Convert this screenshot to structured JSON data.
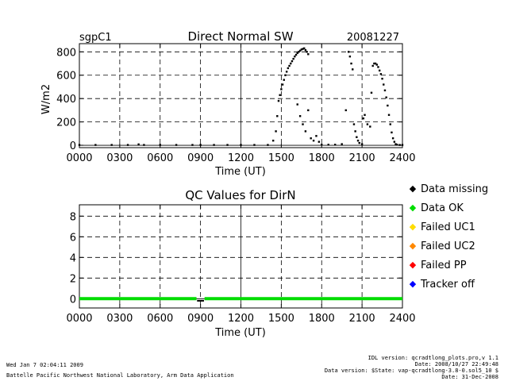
{
  "header": {
    "site": "sgpC1",
    "title": "Direct Normal SW",
    "date": "20081227"
  },
  "chart_data": [
    {
      "type": "scatter",
      "title": "Direct Normal SW",
      "ylabel": "W/m2",
      "xlabel": "Time (UT)",
      "xlim": [
        0,
        2400
      ],
      "ylim": [
        -20,
        870
      ],
      "x_ticks": [
        0,
        300,
        600,
        900,
        1200,
        1500,
        1800,
        2100,
        2400
      ],
      "x_tick_labels": [
        "0000",
        "0300",
        "0600",
        "0900",
        "1200",
        "1500",
        "1800",
        "2100",
        "2400"
      ],
      "y_ticks": [
        0,
        200,
        400,
        600,
        800
      ],
      "y_tick_labels": [
        "0",
        "200",
        "400",
        "600",
        "800"
      ],
      "grid": "dashed",
      "series": [
        {
          "color": "#000000",
          "x": [
            0,
            120,
            240,
            360,
            440,
            480,
            600,
            720,
            840,
            900,
            1000,
            1100,
            1200,
            1300,
            1400,
            1440,
            1460,
            1470,
            1480,
            1490,
            1500,
            1510,
            1520,
            1530,
            1540,
            1550,
            1560,
            1570,
            1580,
            1590,
            1600,
            1610,
            1620,
            1630,
            1640,
            1650,
            1660,
            1670,
            1680,
            1690,
            1700,
            1620,
            1640,
            1660,
            1680,
            1700,
            1720,
            1740,
            1760,
            1780,
            1800,
            1850,
            1900,
            1950,
            1980,
            2000,
            2010,
            2020,
            2030,
            2040,
            2050,
            2060,
            2070,
            2080,
            2100,
            2110,
            2120,
            2140,
            2160,
            2170,
            2180,
            2190,
            2200,
            2210,
            2220,
            2230,
            2240,
            2250,
            2260,
            2270,
            2280,
            2290,
            2300,
            2310,
            2320,
            2330,
            2340,
            2350,
            2360,
            2380,
            2400
          ],
          "y": [
            3,
            3,
            3,
            3,
            8,
            3,
            3,
            3,
            3,
            3,
            3,
            3,
            3,
            3,
            3,
            40,
            120,
            250,
            380,
            430,
            480,
            520,
            560,
            600,
            630,
            660,
            680,
            700,
            720,
            740,
            760,
            775,
            790,
            800,
            810,
            820,
            825,
            830,
            815,
            800,
            780,
            350,
            250,
            180,
            120,
            300,
            60,
            40,
            80,
            30,
            5,
            5,
            5,
            10,
            300,
            800,
            760,
            700,
            650,
            180,
            120,
            70,
            40,
            20,
            10,
            230,
            260,
            180,
            160,
            450,
            680,
            700,
            700,
            690,
            670,
            640,
            610,
            570,
            520,
            470,
            410,
            340,
            260,
            180,
            110,
            60,
            30,
            10,
            5,
            3,
            3
          ]
        }
      ]
    },
    {
      "type": "scatter",
      "title": "QC Values for DirN",
      "xlabel": "Time (UT)",
      "xlim": [
        0,
        2400
      ],
      "ylim": [
        -0.9,
        9.1
      ],
      "x_ticks": [
        0,
        300,
        600,
        900,
        1200,
        1500,
        1800,
        2100,
        2400
      ],
      "x_tick_labels": [
        "0000",
        "0300",
        "0600",
        "0900",
        "1200",
        "1500",
        "1800",
        "2100",
        "2400"
      ],
      "y_ticks": [
        0,
        2,
        4,
        6,
        8
      ],
      "y_tick_labels": [
        "0",
        "2",
        "4",
        "6",
        "8"
      ],
      "grid": "dashed",
      "qc_segments": [
        {
          "x_start": 0,
          "x_end": 870,
          "y": 0,
          "color": "#00dd00"
        },
        {
          "x_start": 930,
          "x_end": 2400,
          "y": 0,
          "color": "#00dd00"
        }
      ],
      "missing_points": {
        "x": [
          880,
          890,
          900,
          910,
          920
        ],
        "y": [
          -0.2,
          -0.2,
          -0.2,
          -0.2,
          -0.2
        ]
      },
      "legend": {
        "placement": "right",
        "entries": [
          {
            "label": "Data missing",
            "color": "#000000"
          },
          {
            "label": "Data OK",
            "color": "#00dd00"
          },
          {
            "label": "Failed UC1",
            "color": "#ffdd00"
          },
          {
            "label": "Failed UC2",
            "color": "#ff8800"
          },
          {
            "label": "Failed PP",
            "color": "#ff0000"
          },
          {
            "label": "Tracker off",
            "color": "#0000ff"
          }
        ]
      }
    }
  ],
  "footer": {
    "left_line1": "Wed Jan  7 02:04:11 2009",
    "left_line2": "Battelle Pacific Northwest National Laboratory, Arm Data Application",
    "right_line1": "IDL version: qcradtlong_plots.pro,v 1.1",
    "right_line2": "Date: 2008/10/27 22:49:48",
    "right_line3": "Data version: $State: vap-qcradtlong-3.8-0.sol5_10 $",
    "right_line4": "Date: 31-Dec-2008"
  }
}
